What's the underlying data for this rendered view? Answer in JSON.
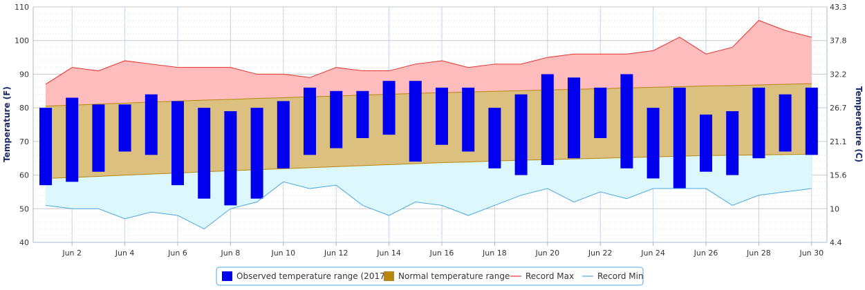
{
  "chart_data": {
    "type": "bar",
    "title": "",
    "xlabel": "",
    "ylabel_left": "Temperature (F)",
    "ylabel_right": "Temperature (C)",
    "ylim": [
      40,
      110
    ],
    "y_ticks_left": [
      "40",
      "50",
      "60",
      "70",
      "80",
      "90",
      "100",
      "110"
    ],
    "y_ticks_right": [
      "4.4",
      "10",
      "15.6",
      "21.1",
      "26.7",
      "32.2",
      "37.8",
      "43.3"
    ],
    "x": [
      1,
      2,
      3,
      4,
      5,
      6,
      7,
      8,
      9,
      10,
      11,
      12,
      13,
      14,
      15,
      16,
      17,
      18,
      19,
      20,
      21,
      22,
      23,
      24,
      25,
      26,
      27,
      28,
      29,
      30
    ],
    "x_tick_labels": [
      "Jun 2",
      "Jun 4",
      "Jun 6",
      "Jun 8",
      "Jun 10",
      "Jun 12",
      "Jun 14",
      "Jun 16",
      "Jun 18",
      "Jun 20",
      "Jun 22",
      "Jun 24",
      "Jun 26",
      "Jun 28",
      "Jun 30"
    ],
    "grid": true,
    "legend_position": "bottom-center",
    "series": [
      {
        "name": "Observed temperature range (2017)",
        "type": "columnrange",
        "color": "#0000ee",
        "low": [
          57,
          58,
          61,
          67,
          66,
          57,
          53,
          51,
          53,
          62,
          66,
          68,
          71,
          72,
          64,
          69,
          67,
          62,
          60,
          63,
          65,
          71,
          62,
          59,
          56,
          61,
          60,
          65,
          67,
          66
        ],
        "high": [
          80,
          83,
          81,
          81,
          84,
          82,
          80,
          79,
          80,
          82,
          86,
          85,
          85,
          88,
          88,
          86,
          86,
          80,
          84,
          90,
          89,
          86,
          90,
          80,
          86,
          78,
          79,
          86,
          84,
          86
        ]
      },
      {
        "name": "Normal temperature range",
        "type": "arearange",
        "color": "#b8860b",
        "fill": "#dcc080",
        "low": [
          59.0,
          59.3,
          59.6,
          60.0,
          60.3,
          60.6,
          61.0,
          61.3,
          61.6,
          61.9,
          62.2,
          62.5,
          62.8,
          63.1,
          63.4,
          63.7,
          63.9,
          64.2,
          64.4,
          64.6,
          64.8,
          65.0,
          65.2,
          65.4,
          65.6,
          65.8,
          65.9,
          66.0,
          66.1,
          66.2
        ],
        "high": [
          80.5,
          80.8,
          81.1,
          81.4,
          81.7,
          82.0,
          82.3,
          82.5,
          82.8,
          83.0,
          83.3,
          83.5,
          83.8,
          84.0,
          84.3,
          84.5,
          84.7,
          84.9,
          85.1,
          85.3,
          85.5,
          85.7,
          85.9,
          86.1,
          86.3,
          86.5,
          86.6,
          86.8,
          87.0,
          87.2
        ]
      },
      {
        "name": "Record Max",
        "type": "line",
        "color": "#e8302a",
        "fill": "#ffbcbc",
        "values": [
          87,
          92,
          91,
          94,
          93,
          92,
          92,
          92,
          90,
          90,
          89,
          92,
          91,
          91,
          93,
          94,
          92,
          93,
          93,
          95,
          96,
          96,
          96,
          97,
          101,
          96,
          98,
          106,
          103,
          101
        ]
      },
      {
        "name": "Record Min",
        "type": "line",
        "color": "#4aa8e0",
        "fill": "#dcf8fc",
        "values": [
          51,
          50,
          50,
          47,
          49,
          48,
          44,
          50,
          52,
          58,
          56,
          57,
          51,
          48,
          52,
          51,
          48,
          51,
          54,
          56,
          52,
          55,
          53,
          56,
          56,
          56,
          51,
          54,
          55,
          56
        ]
      }
    ]
  }
}
